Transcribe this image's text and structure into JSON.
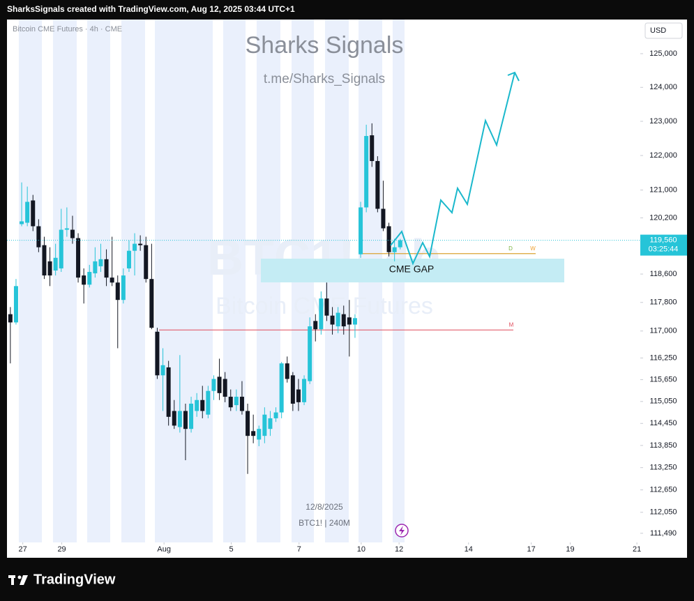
{
  "header": "SharksSignals created with TradingView.com, Aug 12, 2025 03:44 UTC+1",
  "footer": "TradingView",
  "chart_data": {
    "type": "candlestick",
    "title": "Sharks Signals",
    "subtitle": "t.me/Sharks_Signals",
    "symbol_label": "Bitcoin CME Futures · 4h · CME",
    "watermark": "BTC1!, 4h",
    "watermark_subtitle": "Bitcoin CME Futures",
    "currency": "USD",
    "annotation": "CME GAP",
    "cursor_date": "12/8/2025",
    "cursor_info": "BTC1! | 240M",
    "up_color": "#26c4d8",
    "down_color": "#131722",
    "log_scale": true,
    "grid": false,
    "open": [
      117470,
      117240,
      120020,
      120060,
      120700,
      119960,
      119420,
      118960,
      118700,
      118760,
      119860,
      119860,
      119620,
      118560,
      118300,
      118620,
      118820,
      119020,
      118500,
      118360,
      117870,
      118760,
      119260,
      119460,
      119420,
      118460,
      116980,
      115770,
      115990,
      114790,
      114350,
      114790,
      114300,
      114790,
      115090,
      114690,
      115340,
      115730,
      115670,
      115180,
      114950,
      115180,
      114790,
      114240,
      114010,
      114110,
      114300,
      114590,
      114750,
      116100,
      115770,
      115380,
      115030,
      115610,
      117280,
      117050,
      117910,
      117430,
      117130,
      117470,
      117380,
      117180,
      119160,
      120500,
      122590,
      121840,
      120460,
      119960,
      119220,
      119360
    ],
    "high": [
      117670,
      118460,
      121220,
      121100,
      120860,
      120160,
      119660,
      119360,
      119460,
      120460,
      120500,
      120260,
      119760,
      118760,
      118860,
      119360,
      119460,
      119300,
      119660,
      118560,
      118760,
      119560,
      119760,
      119700,
      119660,
      119460,
      117090,
      116520,
      116170,
      115090,
      116330,
      114990,
      115180,
      115280,
      115480,
      115480,
      115770,
      116230,
      115860,
      115380,
      115380,
      115610,
      114990,
      114690,
      114390,
      114890,
      114790,
      114890,
      116140,
      116290,
      115860,
      115670,
      115770,
      117380,
      117470,
      118110,
      118360,
      117670,
      117670,
      117710,
      117870,
      117470,
      120660,
      122900,
      122940,
      121980,
      121270,
      120060,
      119600,
      119600
    ],
    "low": [
      116100,
      117180,
      119960,
      119960,
      119820,
      119220,
      118460,
      118260,
      118560,
      118660,
      119660,
      119460,
      118360,
      117770,
      118220,
      118500,
      118660,
      118260,
      118260,
      116520,
      117770,
      118660,
      118560,
      119260,
      118360,
      117050,
      115670,
      114790,
      114390,
      114300,
      114200,
      113450,
      114200,
      114630,
      114590,
      114590,
      115090,
      115090,
      115030,
      114790,
      114790,
      114690,
      113080,
      113910,
      113830,
      113910,
      114110,
      114490,
      114590,
      115570,
      114790,
      114790,
      114950,
      115530,
      116710,
      116900,
      117280,
      116900,
      116940,
      116900,
      116290,
      116810,
      119060,
      120360,
      121670,
      120360,
      119820,
      119100,
      118960,
      119300
    ],
    "close": [
      117240,
      118260,
      120100,
      120660,
      119960,
      119360,
      118560,
      118560,
      119060,
      119860,
      119900,
      119620,
      118500,
      118300,
      118660,
      118960,
      119020,
      118500,
      118360,
      117870,
      118560,
      119260,
      119460,
      119420,
      118460,
      117090,
      115770,
      116050,
      114630,
      114390,
      114790,
      114300,
      114990,
      115090,
      114790,
      115340,
      115670,
      115280,
      115180,
      114890,
      115180,
      114790,
      114110,
      114110,
      114300,
      114690,
      114590,
      114750,
      116100,
      115670,
      114990,
      115030,
      115670,
      117130,
      117050,
      117910,
      117430,
      117180,
      117510,
      117130,
      117180,
      117360,
      120500,
      122570,
      121840,
      120460,
      119900,
      119220,
      119360,
      119560
    ],
    "xlim": [
      -0.6,
      111.5
    ],
    "xticks": [
      {
        "value": 2.2,
        "label": "27"
      },
      {
        "value": 9.1,
        "label": "29"
      },
      {
        "value": 27.2,
        "label": "Aug"
      },
      {
        "value": 39.1,
        "label": "5"
      },
      {
        "value": 51.1,
        "label": "7"
      },
      {
        "value": 62.1,
        "label": "10"
      },
      {
        "value": 68.8,
        "label": "12"
      },
      {
        "value": 81.1,
        "label": "14"
      },
      {
        "value": 92.2,
        "label": "17"
      },
      {
        "value": 99.1,
        "label": "19"
      },
      {
        "value": 110.9,
        "label": "21"
      }
    ],
    "ylim": [
      111210,
      125980
    ],
    "yticks": [
      {
        "value": 125000,
        "label": "125,000"
      },
      {
        "value": 124000,
        "label": "124,000"
      },
      {
        "value": 123000,
        "label": "123,000"
      },
      {
        "value": 122000,
        "label": "122,000"
      },
      {
        "value": 121000,
        "label": "121,000"
      },
      {
        "value": 120200,
        "label": "120,200"
      },
      {
        "value": 118600,
        "label": "118,600"
      },
      {
        "value": 117800,
        "label": "117,800"
      },
      {
        "value": 117000,
        "label": "117,000"
      },
      {
        "value": 116250,
        "label": "116,250"
      },
      {
        "value": 115650,
        "label": "115,650"
      },
      {
        "value": 115050,
        "label": "115,050"
      },
      {
        "value": 114450,
        "label": "114,450"
      },
      {
        "value": 113850,
        "label": "113,850"
      },
      {
        "value": 113250,
        "label": "113,250"
      },
      {
        "value": 112650,
        "label": "112,650"
      },
      {
        "value": 112050,
        "label": "112,050"
      },
      {
        "value": 111490,
        "label": "111,490"
      }
    ],
    "last_price": {
      "value": 119560,
      "label": "119,560"
    },
    "countdown": "03:25:44",
    "levels": [
      {
        "label": "D",
        "value": 119180,
        "color": "#7cb342"
      },
      {
        "label": "W",
        "value": 119180,
        "color": "#f0a030"
      },
      {
        "label": "M",
        "value": 117030,
        "color": "#e04a5a"
      }
    ]
  }
}
